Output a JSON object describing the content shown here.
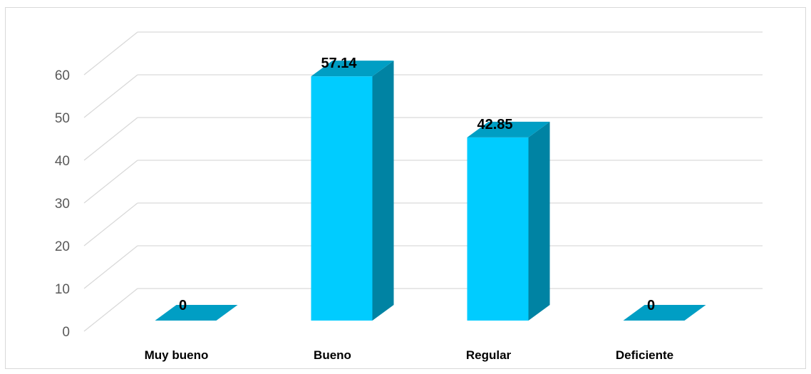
{
  "chart_data": {
    "type": "bar",
    "categories": [
      "Muy bueno",
      "Bueno",
      "Regular",
      "Deficiente"
    ],
    "values": [
      0,
      57.14,
      42.85,
      0
    ],
    "data_labels": [
      "0",
      "57.14",
      "42.85",
      "0"
    ],
    "ylim": [
      0,
      60
    ],
    "yticks": [
      0,
      10,
      20,
      30,
      40,
      50,
      60
    ],
    "ytick_labels": [
      "0",
      "10",
      "20",
      "30",
      "40",
      "50",
      "60"
    ],
    "grid": true,
    "style": "3d-column",
    "colors": {
      "front": "#00ccff",
      "side": "#0083a3",
      "top": "#009ec4",
      "floor": "#009ec4",
      "grid": "#d9d9d9",
      "tick_text": "#595959"
    }
  }
}
